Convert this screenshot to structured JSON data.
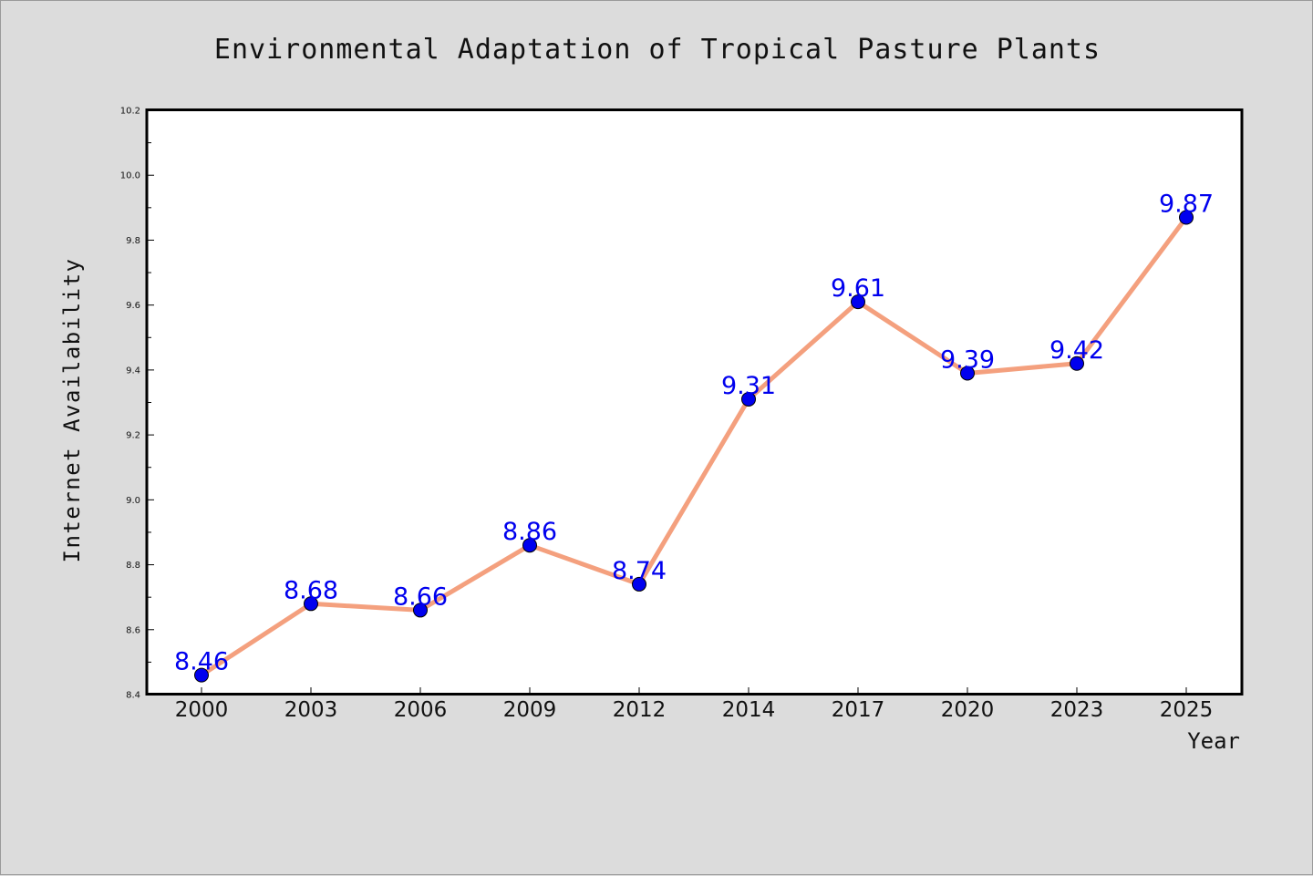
{
  "chart_data": {
    "type": "line",
    "title": "Environmental Adaptation of Tropical Pasture Plants",
    "xlabel": "Year",
    "ylabel": "Internet Availability",
    "categories": [
      "2000",
      "2003",
      "2006",
      "2009",
      "2012",
      "2014",
      "2017",
      "2020",
      "2023",
      "2025"
    ],
    "series": [
      {
        "values": [
          8.46,
          8.68,
          8.66,
          8.86,
          8.74,
          9.31,
          9.61,
          9.39,
          9.42,
          9.87
        ],
        "line_color": "#f4a07e",
        "marker_color": "#0000ee",
        "label_color": "#0000ee"
      }
    ],
    "data_labels": [
      "8.46",
      "8.68",
      "8.66",
      "8.86",
      "8.74",
      "9.31",
      "9.61",
      "9.39",
      "9.42",
      "9.87"
    ],
    "ylim": [
      8.4,
      10.2
    ],
    "y_ticks": [
      "8.4",
      "8.6",
      "8.8",
      "9.0",
      "9.2",
      "9.4",
      "9.6",
      "9.8",
      "10.0",
      "10.2"
    ],
    "y_tick_values": [
      8.4,
      8.6,
      8.8,
      9.0,
      9.2,
      9.4,
      9.6,
      9.8,
      10.0,
      10.2
    ],
    "grid": false,
    "legend": "none",
    "plot_background": "#ffffff",
    "figure_background": "#dcdcdc"
  }
}
